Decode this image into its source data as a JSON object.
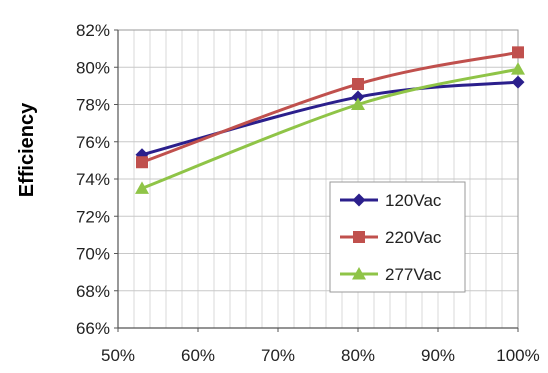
{
  "chart_data": {
    "type": "line",
    "title": "",
    "xlabel": "",
    "ylabel": "Efficiency",
    "xlim": [
      50,
      100
    ],
    "ylim": [
      66,
      82
    ],
    "x_ticks": [
      50,
      60,
      70,
      80,
      90,
      100
    ],
    "x_tick_labels": [
      "50%",
      "60%",
      "70%",
      "80%",
      "90%",
      "100%"
    ],
    "y_ticks": [
      66,
      68,
      70,
      72,
      74,
      76,
      78,
      80,
      82
    ],
    "y_tick_labels": [
      "66%",
      "68%",
      "70%",
      "72%",
      "74%",
      "76%",
      "78%",
      "80%",
      "82%"
    ],
    "grid": true,
    "legend_position": "bottom-right",
    "series": [
      {
        "name": "120Vac",
        "color": "#2b1f8c",
        "marker": "diamond",
        "x": [
          53,
          80,
          100
        ],
        "y": [
          75.3,
          78.4,
          79.2
        ]
      },
      {
        "name": "220Vac",
        "color": "#c0504d",
        "marker": "square",
        "x": [
          53,
          80,
          100
        ],
        "y": [
          74.9,
          79.1,
          80.8
        ]
      },
      {
        "name": "277Vac",
        "color": "#8fc447",
        "marker": "triangle",
        "x": [
          53,
          80,
          100
        ],
        "y": [
          73.5,
          78.0,
          79.9
        ]
      }
    ]
  }
}
